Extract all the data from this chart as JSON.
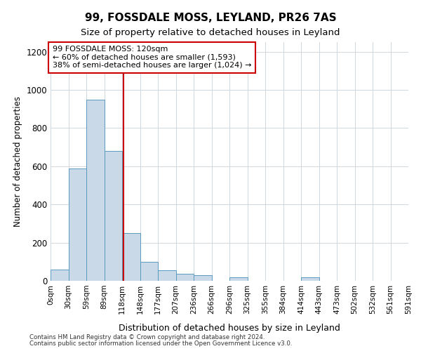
{
  "title1": "99, FOSSDALE MOSS, LEYLAND, PR26 7AS",
  "title2": "Size of property relative to detached houses in Leyland",
  "xlabel": "Distribution of detached houses by size in Leyland",
  "ylabel": "Number of detached properties",
  "footnote1": "Contains HM Land Registry data © Crown copyright and database right 2024.",
  "footnote2": "Contains public sector information licensed under the Open Government Licence v3.0.",
  "annotation_line1": "99 FOSSDALE MOSS: 120sqm",
  "annotation_line2": "← 60% of detached houses are smaller (1,593)",
  "annotation_line3": "38% of semi-detached houses are larger (1,024) →",
  "bin_labels": [
    "0sqm",
    "30sqm",
    "59sqm",
    "89sqm",
    "118sqm",
    "148sqm",
    "177sqm",
    "207sqm",
    "236sqm",
    "266sqm",
    "296sqm",
    "325sqm",
    "355sqm",
    "384sqm",
    "414sqm",
    "443sqm",
    "473sqm",
    "502sqm",
    "532sqm",
    "561sqm",
    "591sqm"
  ],
  "bar_heights": [
    60,
    590,
    950,
    680,
    250,
    100,
    55,
    35,
    30,
    0,
    20,
    0,
    0,
    0,
    20,
    0,
    0,
    0,
    0,
    0
  ],
  "bar_color": "#c9d9e8",
  "bar_edge_color": "#5a9abf",
  "vline_x": 120,
  "vline_color": "#cc0000",
  "ylim": [
    0,
    1250
  ],
  "yticks": [
    0,
    200,
    400,
    600,
    800,
    1000,
    1200
  ],
  "bin_width": 29.5,
  "annotation_box_color": "#ffffff",
  "annotation_box_edge": "#cc0000",
  "bg_color": "#ffffff",
  "grid_color": "#d0d8e0"
}
